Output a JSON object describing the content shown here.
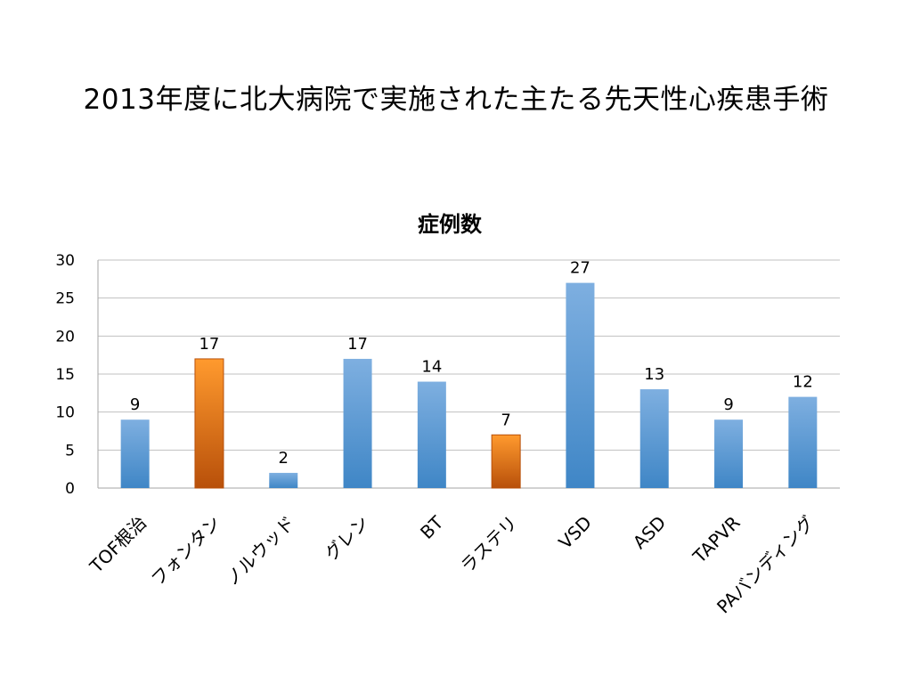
{
  "slide": {
    "title": "2013年度に北大病院で実施された主たる先天性心疾患手術"
  },
  "colors": {
    "blue_top": "#7eafe0",
    "blue_bottom": "#3f86c6",
    "orange_top": "#ff9a2e",
    "orange_bottom": "#b8500a",
    "gridline": "#c0c0c0",
    "axis": "#a6a6a6"
  },
  "chart_data": {
    "type": "bar",
    "title": "症例数",
    "xlabel": "",
    "ylabel": "",
    "ylim": [
      0,
      30
    ],
    "yticks": [
      0,
      5,
      10,
      15,
      20,
      25,
      30
    ],
    "grid": true,
    "legend": "none",
    "categories": [
      "TOF根治",
      "フォンタン",
      "ノルウッド",
      "グレン",
      "BT",
      "ラステリ",
      "VSD",
      "ASD",
      "TAPVR",
      "PAバンディング"
    ],
    "values": [
      9,
      17,
      2,
      17,
      14,
      7,
      27,
      13,
      9,
      12
    ],
    "bar_colors": [
      "blue",
      "orange",
      "blue",
      "blue",
      "blue",
      "orange",
      "blue",
      "blue",
      "blue",
      "blue"
    ],
    "data_labels": [
      "9",
      "17",
      "2",
      "17",
      "14",
      "7",
      "27",
      "13",
      "9",
      "12"
    ]
  }
}
